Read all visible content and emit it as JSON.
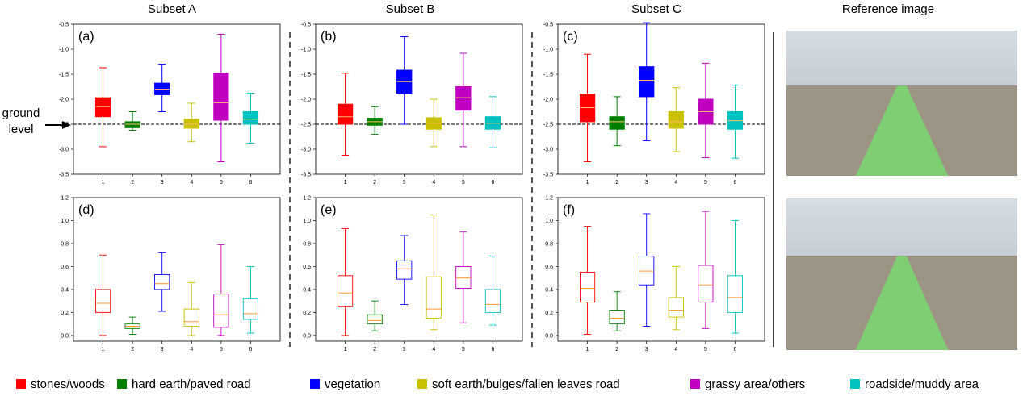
{
  "column_titles": [
    "Subset A",
    "Subset B",
    "Subset C",
    "Reference image"
  ],
  "ground_label": [
    "ground",
    "level"
  ],
  "legend": [
    {
      "label": "stones/woods",
      "color": "#ff0000"
    },
    {
      "label": "hard earth/paved road",
      "color": "#008000"
    },
    {
      "label": "vegetation",
      "color": "#0000ff"
    },
    {
      "label": "soft earth/bulges/fallen leaves road",
      "color": "#c8c000"
    },
    {
      "label": "grassy area/others",
      "color": "#c000c0"
    },
    {
      "label": "roadside/muddy area",
      "color": "#00c0c0"
    }
  ],
  "reference_images": [
    "road-scene-top",
    "road-scene-bottom"
  ],
  "chart_data": [
    {
      "type": "box",
      "panel": "(a)",
      "ylim": [
        -3.5,
        -0.5
      ],
      "yticks": [
        -3.5,
        -3.0,
        -2.5,
        -2.0,
        -1.5,
        -1.0,
        -0.5
      ],
      "yticklabels": [
        "-3.5",
        "-3.0",
        "-2.5",
        "-2.0",
        "-1.5",
        "-1.0",
        "-0.5"
      ],
      "categories": [
        "1",
        "2",
        "3",
        "4",
        "5",
        "6"
      ],
      "reference_line": -2.5,
      "filled": true,
      "boxes": [
        {
          "whislo": -2.95,
          "q1": -2.35,
          "med": -2.15,
          "q3": -1.97,
          "whishi": -1.37
        },
        {
          "whislo": -2.62,
          "q1": -2.57,
          "med": -2.5,
          "q3": -2.45,
          "whishi": -2.25
        },
        {
          "whislo": -2.25,
          "q1": -1.91,
          "med": -1.8,
          "q3": -1.68,
          "whishi": -1.3
        },
        {
          "whislo": -2.85,
          "q1": -2.58,
          "med": -2.5,
          "q3": -2.4,
          "whishi": -2.08
        },
        {
          "whislo": -3.25,
          "q1": -2.42,
          "med": -2.07,
          "q3": -1.48,
          "whishi": -0.7
        },
        {
          "whislo": -2.88,
          "q1": -2.5,
          "med": -2.4,
          "q3": -2.25,
          "whishi": -1.88
        }
      ]
    },
    {
      "type": "box",
      "panel": "(b)",
      "ylim": [
        -3.5,
        -0.5
      ],
      "yticks": [
        -3.5,
        -3.0,
        -2.5,
        -2.0,
        -1.5,
        -1.0,
        -0.5
      ],
      "yticklabels": [
        "-3.5",
        "-3.0",
        "-2.5",
        "-2.0",
        "-1.5",
        "-1.0",
        "-0.5"
      ],
      "categories": [
        "1",
        "2",
        "3",
        "4",
        "5",
        "6"
      ],
      "reference_line": -2.5,
      "filled": true,
      "boxes": [
        {
          "whislo": -3.12,
          "q1": -2.5,
          "med": -2.35,
          "q3": -2.1,
          "whishi": -1.48
        },
        {
          "whislo": -2.7,
          "q1": -2.52,
          "med": -2.45,
          "q3": -2.38,
          "whishi": -2.15
        },
        {
          "whislo": -2.5,
          "q1": -1.88,
          "med": -1.65,
          "q3": -1.42,
          "whishi": -0.75
        },
        {
          "whislo": -2.95,
          "q1": -2.6,
          "med": -2.48,
          "q3": -2.37,
          "whishi": -2.0
        },
        {
          "whislo": -2.95,
          "q1": -2.22,
          "med": -1.97,
          "q3": -1.75,
          "whishi": -1.08
        },
        {
          "whislo": -2.97,
          "q1": -2.6,
          "med": -2.48,
          "q3": -2.35,
          "whishi": -1.95
        }
      ]
    },
    {
      "type": "box",
      "panel": "(c)",
      "ylim": [
        -3.5,
        -0.5
      ],
      "yticks": [
        -3.5,
        -3.0,
        -2.5,
        -2.0,
        -1.5,
        -1.0,
        -0.5
      ],
      "yticklabels": [
        "-3.5",
        "-3.0",
        "-2.5",
        "-2.0",
        "-1.5",
        "-1.0",
        "-0.5"
      ],
      "categories": [
        "1",
        "2",
        "3",
        "4",
        "5",
        "6"
      ],
      "reference_line": -2.5,
      "filled": true,
      "boxes": [
        {
          "whislo": -3.25,
          "q1": -2.45,
          "med": -2.17,
          "q3": -1.9,
          "whishi": -1.1
        },
        {
          "whislo": -2.93,
          "q1": -2.6,
          "med": -2.45,
          "q3": -2.35,
          "whishi": -1.95
        },
        {
          "whislo": -2.83,
          "q1": -1.95,
          "med": -1.62,
          "q3": -1.35,
          "whishi": -0.47
        },
        {
          "whislo": -3.05,
          "q1": -2.58,
          "med": -2.45,
          "q3": -2.25,
          "whishi": -1.77
        },
        {
          "whislo": -3.17,
          "q1": -2.5,
          "med": -2.25,
          "q3": -2.0,
          "whishi": -1.28
        },
        {
          "whislo": -3.18,
          "q1": -2.6,
          "med": -2.43,
          "q3": -2.25,
          "whishi": -1.72
        }
      ]
    },
    {
      "type": "box",
      "panel": "(d)",
      "ylim": [
        -0.05,
        1.2
      ],
      "yticks": [
        0.0,
        0.2,
        0.4,
        0.6,
        0.8,
        1.0,
        1.2
      ],
      "yticklabels": [
        "0.0",
        "0.2",
        "0.4",
        "0.6",
        "0.8",
        "1.0",
        "1.2"
      ],
      "categories": [
        "1",
        "2",
        "3",
        "4",
        "5",
        "6"
      ],
      "filled": false,
      "boxes": [
        {
          "whislo": 0.0,
          "q1": 0.2,
          "med": 0.28,
          "q3": 0.4,
          "whishi": 0.7
        },
        {
          "whislo": 0.01,
          "q1": 0.06,
          "med": 0.08,
          "q3": 0.1,
          "whishi": 0.16
        },
        {
          "whislo": 0.21,
          "q1": 0.4,
          "med": 0.45,
          "q3": 0.53,
          "whishi": 0.72
        },
        {
          "whislo": 0.0,
          "q1": 0.08,
          "med": 0.12,
          "q3": 0.23,
          "whishi": 0.46
        },
        {
          "whislo": 0.0,
          "q1": 0.07,
          "med": 0.18,
          "q3": 0.36,
          "whishi": 0.79
        },
        {
          "whislo": 0.02,
          "q1": 0.14,
          "med": 0.19,
          "q3": 0.32,
          "whishi": 0.6
        }
      ]
    },
    {
      "type": "box",
      "panel": "(e)",
      "ylim": [
        -0.05,
        1.2
      ],
      "yticks": [
        0.0,
        0.2,
        0.4,
        0.6,
        0.8,
        1.0,
        1.2
      ],
      "yticklabels": [
        "0.0",
        "0.2",
        "0.4",
        "0.6",
        "0.8",
        "1.0",
        "1.2"
      ],
      "categories": [
        "1",
        "2",
        "3",
        "4",
        "5",
        "6"
      ],
      "filled": false,
      "boxes": [
        {
          "whislo": 0.0,
          "q1": 0.25,
          "med": 0.37,
          "q3": 0.52,
          "whishi": 0.93
        },
        {
          "whislo": 0.04,
          "q1": 0.1,
          "med": 0.13,
          "q3": 0.18,
          "whishi": 0.3
        },
        {
          "whislo": 0.27,
          "q1": 0.49,
          "med": 0.58,
          "q3": 0.65,
          "whishi": 0.87
        },
        {
          "whislo": 0.05,
          "q1": 0.15,
          "med": 0.23,
          "q3": 0.51,
          "whishi": 1.05
        },
        {
          "whislo": 0.11,
          "q1": 0.41,
          "med": 0.5,
          "q3": 0.6,
          "whishi": 0.9
        },
        {
          "whislo": 0.09,
          "q1": 0.2,
          "med": 0.27,
          "q3": 0.4,
          "whishi": 0.69
        }
      ]
    },
    {
      "type": "box",
      "panel": "(f)",
      "ylim": [
        -0.05,
        1.2
      ],
      "yticks": [
        0.0,
        0.2,
        0.4,
        0.6,
        0.8,
        1.0,
        1.2
      ],
      "yticklabels": [
        "0.0",
        "0.2",
        "0.4",
        "0.6",
        "0.8",
        "1.0",
        "1.2"
      ],
      "categories": [
        "1",
        "2",
        "3",
        "4",
        "5",
        "6"
      ],
      "filled": false,
      "boxes": [
        {
          "whislo": 0.01,
          "q1": 0.29,
          "med": 0.41,
          "q3": 0.55,
          "whishi": 0.95
        },
        {
          "whislo": 0.04,
          "q1": 0.1,
          "med": 0.15,
          "q3": 0.22,
          "whishi": 0.38
        },
        {
          "whislo": 0.08,
          "q1": 0.44,
          "med": 0.56,
          "q3": 0.69,
          "whishi": 1.06
        },
        {
          "whislo": 0.05,
          "q1": 0.16,
          "med": 0.22,
          "q3": 0.33,
          "whishi": 0.6
        },
        {
          "whislo": 0.06,
          "q1": 0.29,
          "med": 0.44,
          "q3": 0.61,
          "whishi": 1.08
        },
        {
          "whislo": 0.02,
          "q1": 0.2,
          "med": 0.33,
          "q3": 0.52,
          "whishi": 1.0
        }
      ]
    }
  ]
}
